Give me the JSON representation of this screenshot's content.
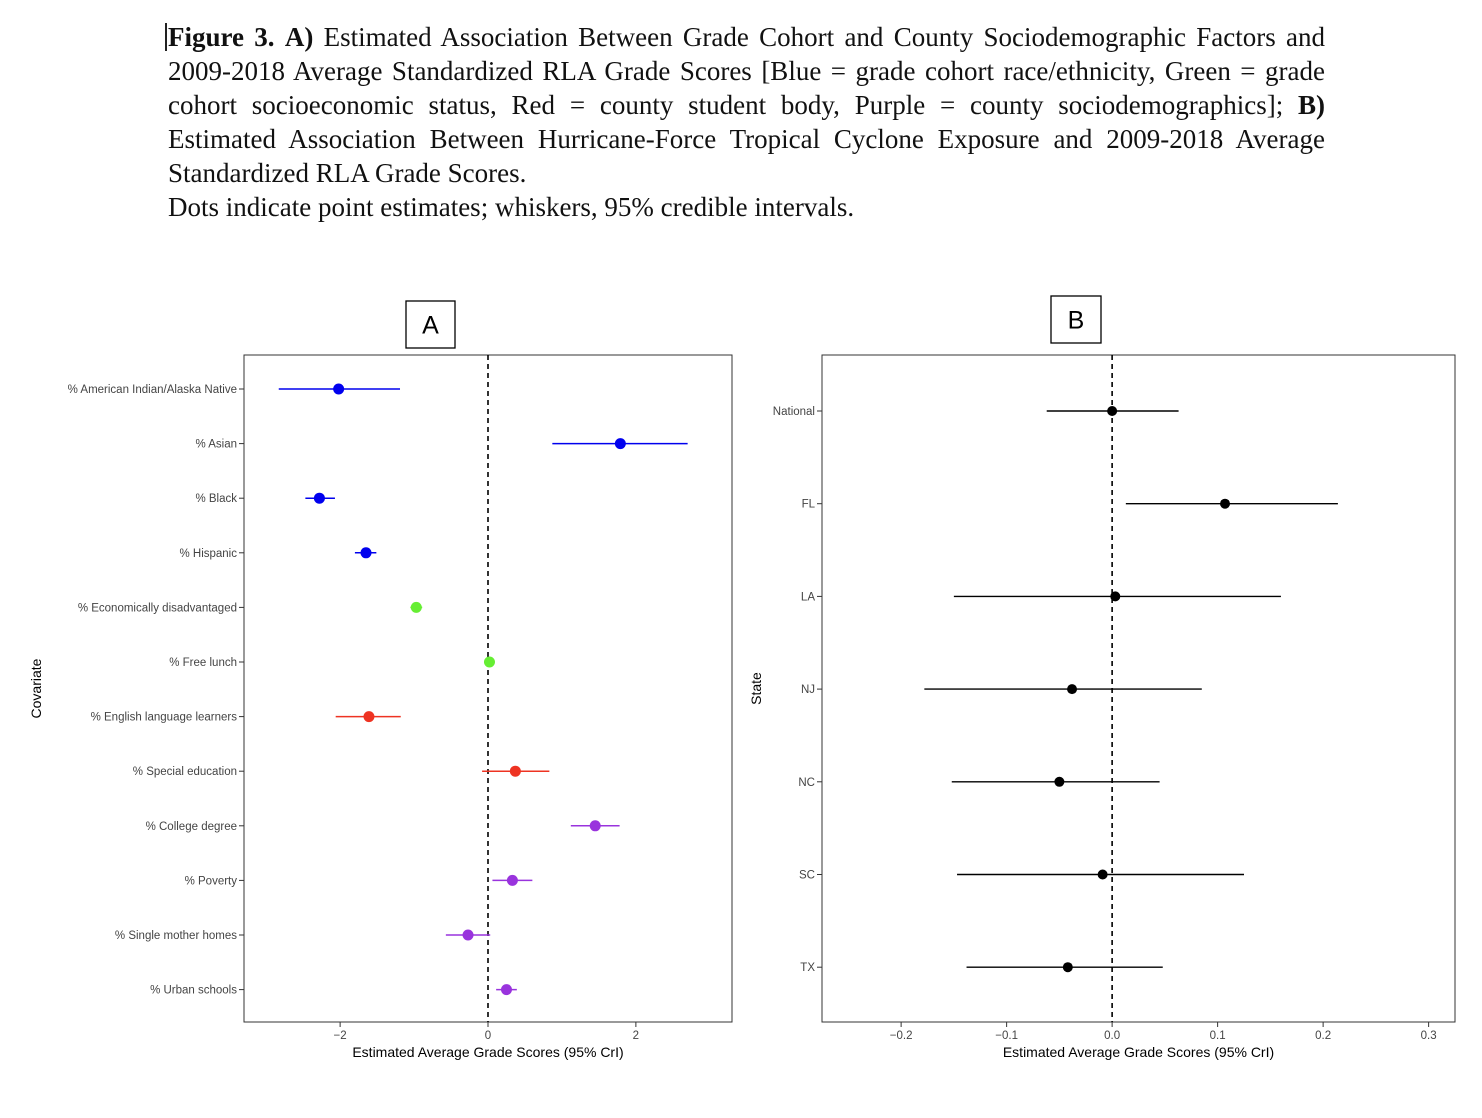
{
  "caption": {
    "fig_label": "Figure 3.",
    "a_label": "A)",
    "text1": "Estimated Association Between Grade Cohort and County Sociodemographic Factors and 2009-2018 Average Standardized RLA Grade Scores [Blue = grade cohort race/ethnicity, Green = grade cohort socioeconomic status, Red = county student body, Purple = county sociodemographics];",
    "b_label": "B)",
    "text2": "Estimated Association Between Hurricane-Force Tropical Cyclone Exposure and 2009-2018 Average Standardized RLA Grade Scores.",
    "text3": "Dots indicate point estimates; whiskers, 95% credible intervals."
  },
  "colors": {
    "blue": "#0000ee",
    "green": "#66ee33",
    "red": "#ee3322",
    "purple": "#9933dd",
    "black": "#000000"
  },
  "chart_data": [
    {
      "panel": "A",
      "type": "scatter",
      "xlabel": "Estimated Average Grade Scores (95% CrI)",
      "ylabel": "Covariate",
      "xlim": [
        -3.3,
        3.3
      ],
      "xticks": [
        -2,
        0,
        2
      ],
      "xtick_labels": [
        "−2",
        "0",
        "2"
      ],
      "reference_line": 0,
      "rows": [
        {
          "label": "% American Indian/Alaska Native",
          "est": -2.02,
          "lo": -2.83,
          "hi": -1.19,
          "color": "blue"
        },
        {
          "label": "% Asian",
          "est": 1.79,
          "lo": 0.87,
          "hi": 2.7,
          "color": "blue"
        },
        {
          "label": "% Black",
          "est": -2.28,
          "lo": -2.47,
          "hi": -2.07,
          "color": "blue"
        },
        {
          "label": "% Hispanic",
          "est": -1.65,
          "lo": -1.8,
          "hi": -1.51,
          "color": "blue"
        },
        {
          "label": "% Economically disadvantaged",
          "est": -0.97,
          "lo": -1.05,
          "hi": -0.89,
          "color": "green"
        },
        {
          "label": "% Free lunch",
          "est": 0.02,
          "lo": -0.05,
          "hi": 0.09,
          "color": "green"
        },
        {
          "label": "% English language learners",
          "est": -1.61,
          "lo": -2.06,
          "hi": -1.18,
          "color": "red"
        },
        {
          "label": "% Special education",
          "est": 0.37,
          "lo": -0.08,
          "hi": 0.83,
          "color": "red"
        },
        {
          "label": "% College degree",
          "est": 1.45,
          "lo": 1.12,
          "hi": 1.78,
          "color": "purple"
        },
        {
          "label": "% Poverty",
          "est": 0.33,
          "lo": 0.06,
          "hi": 0.6,
          "color": "purple"
        },
        {
          "label": "% Single mother homes",
          "est": -0.27,
          "lo": -0.57,
          "hi": 0.03,
          "color": "purple"
        },
        {
          "label": "% Urban schools",
          "est": 0.25,
          "lo": 0.11,
          "hi": 0.39,
          "color": "purple"
        }
      ]
    },
    {
      "panel": "B",
      "type": "scatter",
      "xlabel": "Estimated Average Grade Scores (95% CrI)",
      "ylabel": "State",
      "xlim": [
        -0.275,
        0.325
      ],
      "xticks": [
        -0.2,
        -0.1,
        0.0,
        0.1,
        0.2,
        0.3
      ],
      "xtick_labels": [
        "−0.2",
        "−0.1",
        "0.0",
        "0.1",
        "0.2",
        "0.3"
      ],
      "reference_line": 0,
      "rows": [
        {
          "label": "National",
          "est": 0.0,
          "lo": -0.062,
          "hi": 0.063,
          "color": "black"
        },
        {
          "label": "FL",
          "est": 0.107,
          "lo": 0.013,
          "hi": 0.214,
          "color": "black"
        },
        {
          "label": "LA",
          "est": 0.003,
          "lo": -0.15,
          "hi": 0.16,
          "color": "black"
        },
        {
          "label": "NJ",
          "est": -0.038,
          "lo": -0.178,
          "hi": 0.085,
          "color": "black"
        },
        {
          "label": "NC",
          "est": -0.05,
          "lo": -0.152,
          "hi": 0.045,
          "color": "black"
        },
        {
          "label": "SC",
          "est": -0.009,
          "lo": -0.147,
          "hi": 0.125,
          "color": "black"
        },
        {
          "label": "TX",
          "est": -0.042,
          "lo": -0.138,
          "hi": 0.048,
          "color": "black"
        }
      ]
    }
  ]
}
